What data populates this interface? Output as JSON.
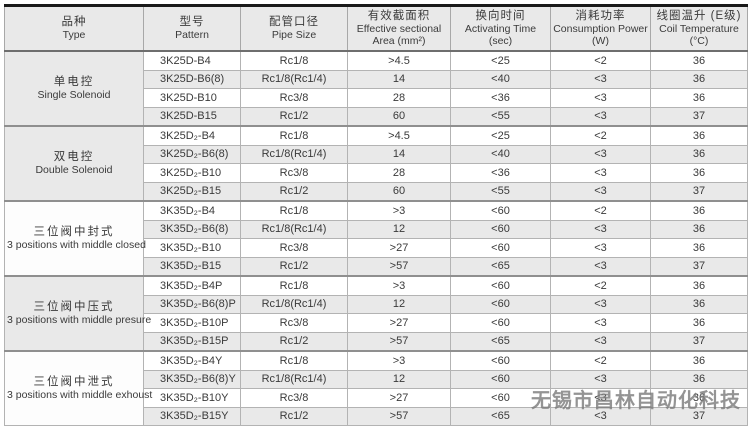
{
  "header": {
    "cols": [
      {
        "zh": "品种",
        "en": "Type",
        "sub": ""
      },
      {
        "zh": "型号",
        "en": "Pattern",
        "sub": ""
      },
      {
        "zh": "配管口径",
        "en": "Pipe Size",
        "sub": ""
      },
      {
        "zh": "有效截面积",
        "en": "Effective sectional",
        "sub": "Area (mm²)"
      },
      {
        "zh": "换向时间",
        "en": "Activating Time",
        "sub": "(sec)"
      },
      {
        "zh": "消耗功率",
        "en": "Consumption Power",
        "sub": "(W)"
      },
      {
        "zh": "线圈温升 (E级)",
        "en": "Coil Temperature",
        "sub": "(°C)"
      }
    ]
  },
  "groups": [
    {
      "type_zh": "单电控",
      "type_en": "Single Solenoid",
      "shaded": true,
      "rows": [
        {
          "pattern": "3K25D-B4",
          "pipe": "Rc1/8",
          "area": ">4.5",
          "time": "<25",
          "power": "<2",
          "temp": "36"
        },
        {
          "pattern": "3K25D-B6(8)",
          "pipe": "Rc1/8(Rc1/4)",
          "area": "14",
          "time": "<40",
          "power": "<3",
          "temp": "36"
        },
        {
          "pattern": "3K25D-B10",
          "pipe": "Rc3/8",
          "area": "28",
          "time": "<36",
          "power": "<3",
          "temp": "36"
        },
        {
          "pattern": "3K25D-B15",
          "pipe": "Rc1/2",
          "area": "60",
          "time": "<55",
          "power": "<3",
          "temp": "37"
        }
      ]
    },
    {
      "type_zh": "双电控",
      "type_en": "Double Solenoid",
      "shaded": true,
      "rows": [
        {
          "pattern": "3K25D₂-B4",
          "pipe": "Rc1/8",
          "area": ">4.5",
          "time": "<25",
          "power": "<2",
          "temp": "36"
        },
        {
          "pattern": "3K25D₂-B6(8)",
          "pipe": "Rc1/8(Rc1/4)",
          "area": "14",
          "time": "<40",
          "power": "<3",
          "temp": "36"
        },
        {
          "pattern": "3K25D₂-B10",
          "pipe": "Rc3/8",
          "area": "28",
          "time": "<36",
          "power": "<3",
          "temp": "36"
        },
        {
          "pattern": "3K25D₂-B15",
          "pipe": "Rc1/2",
          "area": "60",
          "time": "<55",
          "power": "<3",
          "temp": "37"
        }
      ]
    },
    {
      "type_zh": "三位阀中封式",
      "type_en": "3 positions with middle closed",
      "shaded": false,
      "rows": [
        {
          "pattern": "3K35D₂-B4",
          "pipe": "Rc1/8",
          "area": ">3",
          "time": "<60",
          "power": "<2",
          "temp": "36"
        },
        {
          "pattern": "3K35D₂-B6(8)",
          "pipe": "Rc1/8(Rc1/4)",
          "area": "12",
          "time": "<60",
          "power": "<3",
          "temp": "36"
        },
        {
          "pattern": "3K35D₂-B10",
          "pipe": "Rc3/8",
          "area": ">27",
          "time": "<60",
          "power": "<3",
          "temp": "36"
        },
        {
          "pattern": "3K35D₂-B15",
          "pipe": "Rc1/2",
          "area": ">57",
          "time": "<65",
          "power": "<3",
          "temp": "37"
        }
      ]
    },
    {
      "type_zh": "三位阀中压式",
      "type_en": "3 positions with middle presure",
      "shaded": true,
      "rows": [
        {
          "pattern": "3K35D₂-B4P",
          "pipe": "Rc1/8",
          "area": ">3",
          "time": "<60",
          "power": "<2",
          "temp": "36"
        },
        {
          "pattern": "3K35D₂-B6(8)P",
          "pipe": "Rc1/8(Rc1/4)",
          "area": "12",
          "time": "<60",
          "power": "<3",
          "temp": "36"
        },
        {
          "pattern": "3K35D₂-B10P",
          "pipe": "Rc3/8",
          "area": ">27",
          "time": "<60",
          "power": "<3",
          "temp": "36"
        },
        {
          "pattern": "3K35D₂-B15P",
          "pipe": "Rc1/2",
          "area": ">57",
          "time": "<65",
          "power": "<3",
          "temp": "37"
        }
      ]
    },
    {
      "type_zh": "三位阀中泄式",
      "type_en": "3 positions with middle exhoust",
      "shaded": false,
      "rows": [
        {
          "pattern": "3K35D₂-B4Y",
          "pipe": "Rc1/8",
          "area": ">3",
          "time": "<60",
          "power": "<2",
          "temp": "36"
        },
        {
          "pattern": "3K35D₂-B6(8)Y",
          "pipe": "Rc1/8(Rc1/4)",
          "area": "12",
          "time": "<60",
          "power": "<3",
          "temp": "36"
        },
        {
          "pattern": "3K35D₂-B10Y",
          "pipe": "Rc3/8",
          "area": ">27",
          "time": "<60",
          "power": "<3",
          "temp": "36"
        },
        {
          "pattern": "3K35D₂-B15Y",
          "pipe": "Rc1/2",
          "area": ">57",
          "time": "<65",
          "power": "<3",
          "temp": "37"
        }
      ]
    }
  ],
  "watermark": "无锡市昌林自动化科技"
}
